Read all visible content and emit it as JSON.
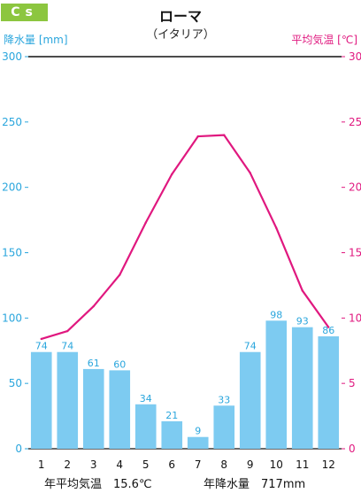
{
  "header": {
    "badge": "Cs",
    "title": "ローマ",
    "subtitle": "（イタリア）"
  },
  "footer": {
    "avg_temp": "年平均気温　15.6℃",
    "annual_precip": "年降水量　717mm"
  },
  "colors": {
    "badge": "#8cc63f",
    "bars": "#7dcbf1",
    "precip_text": "#2aa6dd",
    "temp_line": "#e0187f"
  },
  "chart_data": {
    "type": "bar+line",
    "categories": [
      "1",
      "2",
      "3",
      "4",
      "5",
      "6",
      "7",
      "8",
      "9",
      "10",
      "11",
      "12"
    ],
    "series": [
      {
        "kind": "bar",
        "axis": "left",
        "values": [
          74,
          74,
          61,
          60,
          34,
          21,
          9,
          33,
          74,
          98,
          93,
          86
        ]
      },
      {
        "kind": "line",
        "axis": "right",
        "values": [
          8.4,
          9.0,
          10.9,
          13.3,
          17.3,
          21.0,
          23.9,
          24.0,
          21.1,
          16.9,
          12.1,
          9.3
        ]
      }
    ],
    "ylabel": "降水量 [mm]",
    "y2label": "平均気温 [℃]",
    "ylim": [
      0,
      300
    ],
    "y2lim": [
      0,
      30
    ],
    "yticks": [
      "0",
      "50",
      "100",
      "150",
      "200",
      "250",
      "300"
    ],
    "y2ticks": [
      "0",
      "5",
      "10",
      "15",
      "20",
      "25",
      "30"
    ],
    "grid": false
  }
}
